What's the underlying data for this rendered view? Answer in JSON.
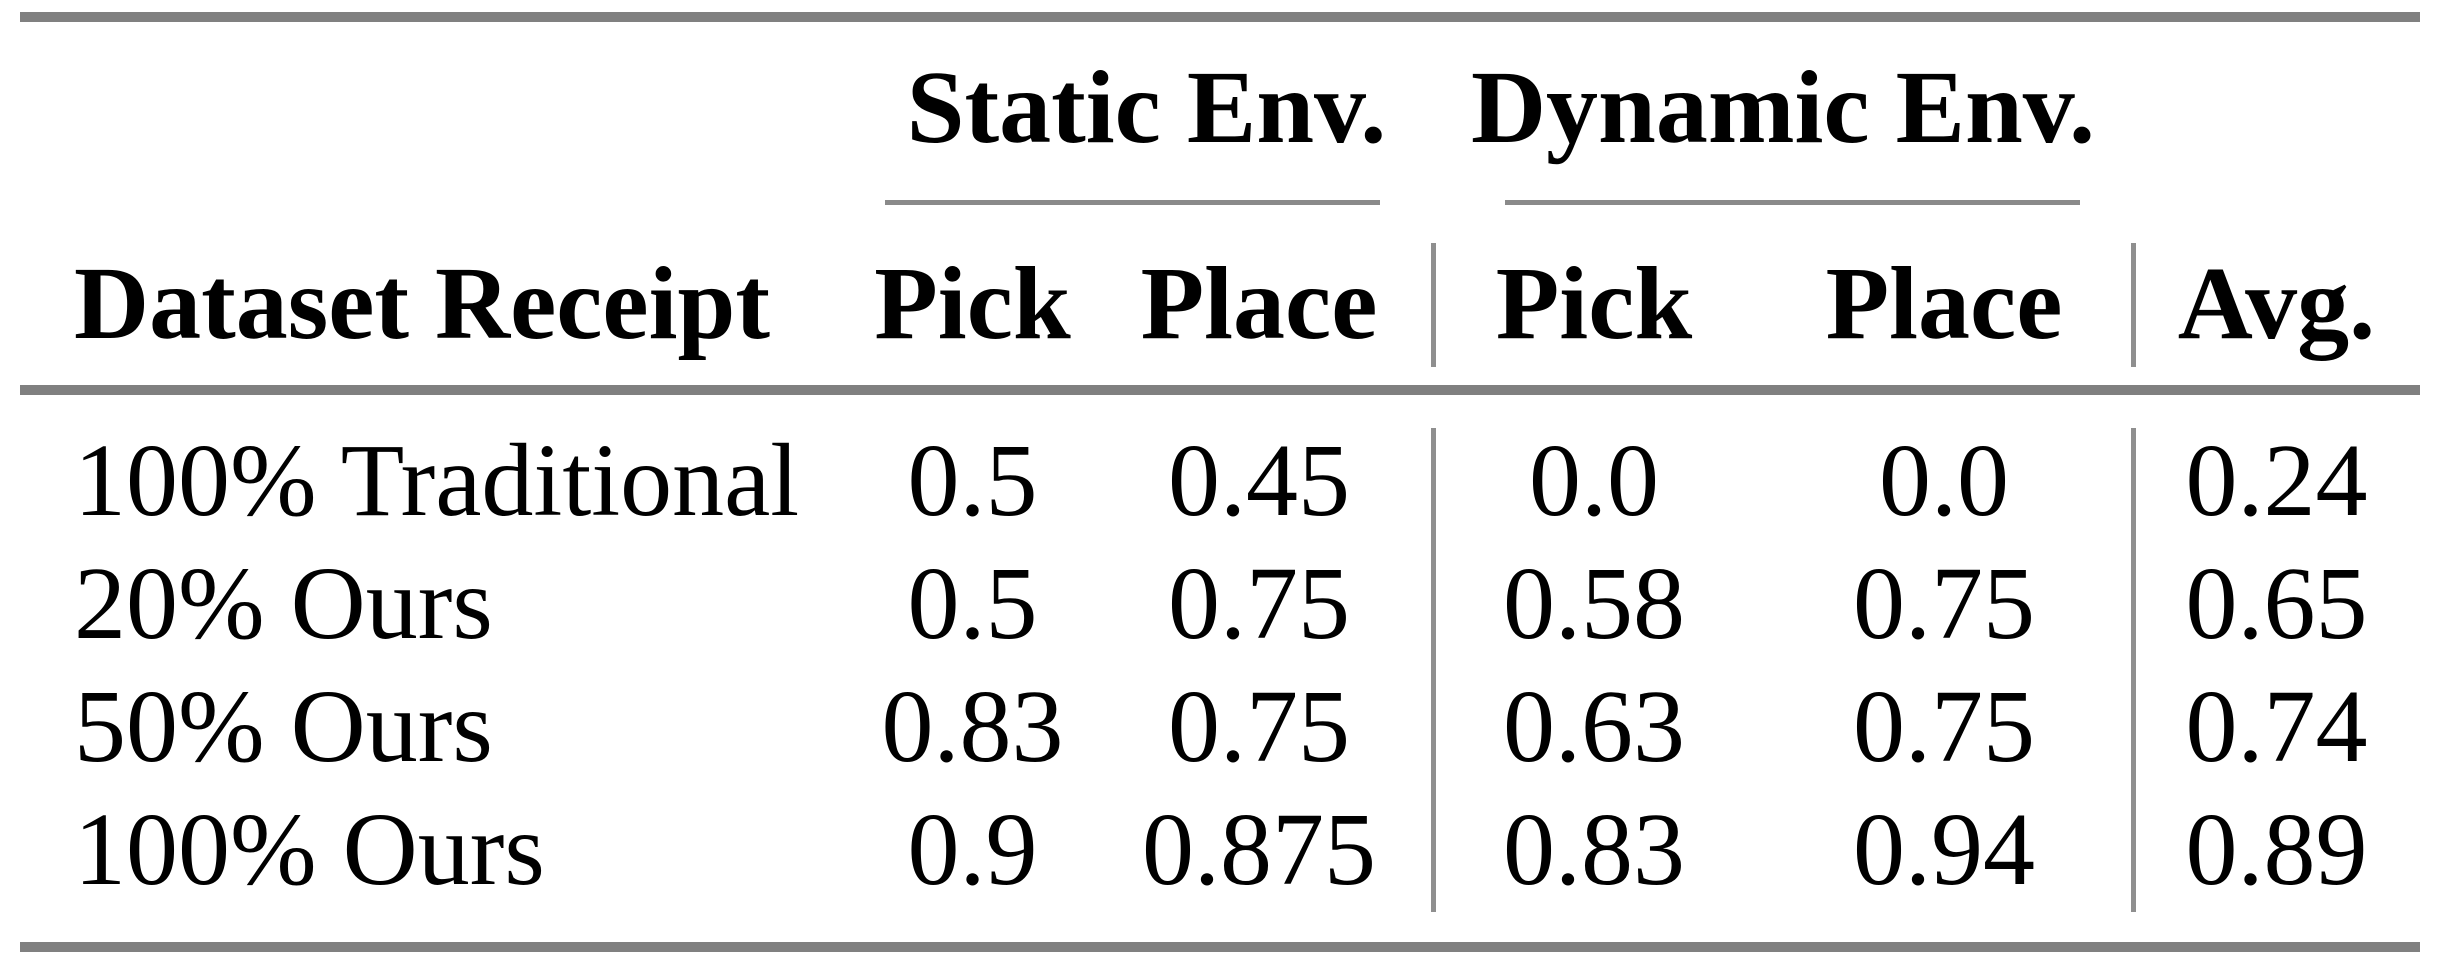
{
  "table": {
    "group_headers": {
      "static": "Static Env.",
      "dynamic": "Dynamic Env."
    },
    "column_headers": {
      "row_label": "Dataset Receipt",
      "static_pick": "Pick",
      "static_place": "Place",
      "dynamic_pick": "Pick",
      "dynamic_place": "Place",
      "avg": "Avg."
    },
    "rows": [
      {
        "label": "100% Traditional",
        "static_pick": "0.5",
        "static_place": "0.45",
        "dynamic_pick": "0.0",
        "dynamic_place": "0.0",
        "avg": "0.24"
      },
      {
        "label": "20% Ours",
        "static_pick": "0.5",
        "static_place": "0.75",
        "dynamic_pick": "0.58",
        "dynamic_place": "0.75",
        "avg": "0.65"
      },
      {
        "label": "50% Ours",
        "static_pick": "0.83",
        "static_place": "0.75",
        "dynamic_pick": "0.63",
        "dynamic_place": "0.75",
        "avg": "0.74"
      },
      {
        "label": "100% Ours",
        "static_pick": "0.9",
        "static_place": "0.875",
        "dynamic_pick": "0.83",
        "dynamic_place": "0.94",
        "avg": "0.89"
      }
    ]
  },
  "chart_data": {
    "type": "table",
    "title": "",
    "column_groups": [
      "Static Env.",
      "Dynamic Env."
    ],
    "columns": [
      "Dataset Receipt",
      "Static Env. Pick",
      "Static Env. Place",
      "Dynamic Env. Pick",
      "Dynamic Env. Place",
      "Avg."
    ],
    "rows": [
      [
        "100% Traditional",
        0.5,
        0.45,
        0.0,
        0.0,
        0.24
      ],
      [
        "20% Ours",
        0.5,
        0.75,
        0.58,
        0.75,
        0.65
      ],
      [
        "50% Ours",
        0.83,
        0.75,
        0.63,
        0.75,
        0.74
      ],
      [
        "100% Ours",
        0.9,
        0.875,
        0.83,
        0.94,
        0.89
      ]
    ]
  },
  "colors": {
    "background": "#ffffff",
    "text": "#000000",
    "thick_rule": "#808080",
    "thin_rule": "#8a8a8a",
    "vertical_rule": "#8f8f8f"
  }
}
